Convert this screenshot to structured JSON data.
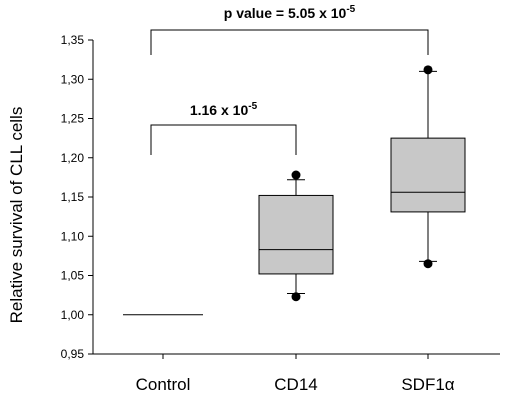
{
  "chart_data": {
    "type": "box",
    "ylabel": "Relative survival of CLL  cells",
    "ylim": [
      0.95,
      1.35
    ],
    "yticks": [
      "0,95",
      "1,00",
      "1,05",
      "1,10",
      "1,15",
      "1,20",
      "1,25",
      "1,30",
      "1,35"
    ],
    "ytick_values": [
      0.95,
      1.0,
      1.05,
      1.1,
      1.15,
      1.2,
      1.25,
      1.3,
      1.35
    ],
    "categories": [
      "Control",
      "CD14",
      "SDF1α"
    ],
    "boxes": [
      {
        "category": "Control",
        "median": 1.0,
        "q1": 1.0,
        "q3": 1.0,
        "whisker_low": 1.0,
        "whisker_high": 1.0,
        "outliers": []
      },
      {
        "category": "CD14",
        "median": 1.083,
        "q1": 1.052,
        "q3": 1.152,
        "whisker_low": 1.027,
        "whisker_high": 1.172,
        "outliers": [
          1.023,
          1.178
        ]
      },
      {
        "category": "SDF1α",
        "median": 1.156,
        "q1": 1.131,
        "q3": 1.225,
        "whisker_low": 1.068,
        "whisker_high": 1.31,
        "outliers": [
          1.065,
          1.312
        ]
      }
    ],
    "annotations": [
      {
        "from": "Control",
        "to": "CD14",
        "text": "1.16 x 10",
        "exp": "-5"
      },
      {
        "from": "Control",
        "to": "SDF1α",
        "text": "p value = 5.05 x 10",
        "exp": "-5"
      }
    ],
    "colors": {
      "box_fill": "#c8c8c8",
      "line": "#000000",
      "outlier": "#000000"
    },
    "grid": false
  }
}
